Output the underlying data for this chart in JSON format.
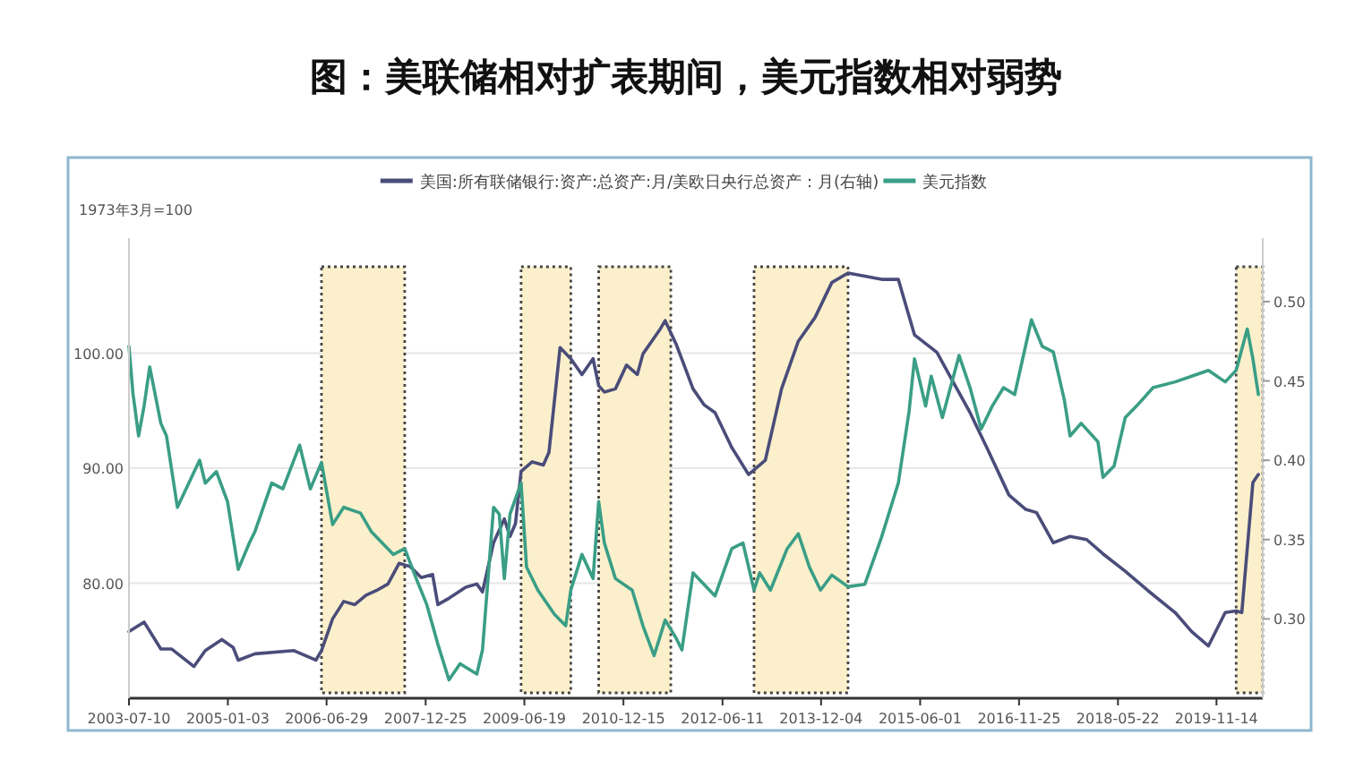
{
  "chart_data": {
    "type": "line",
    "title": "图：美联储相对扩表期间，美元指数相对弱势",
    "ylabel": "1973年3月=100",
    "legend": "top",
    "grid": "y",
    "marker": "none",
    "line_style": "solid",
    "xlim": [
      "2003-07-10",
      "2020-07-25"
    ],
    "xticks": [
      "2003-07-10",
      "2005-01-03",
      "2006-06-29",
      "2007-12-25",
      "2009-06-19",
      "2010-12-15",
      "2012-06-11",
      "2013-12-04",
      "2015-06-01",
      "2016-11-25",
      "2018-05-22",
      "2019-11-14"
    ],
    "ylim": [
      70,
      110
    ],
    "yticks": [
      {
        "value": 80,
        "label": "80.00"
      },
      {
        "value": 90,
        "label": "90.00"
      },
      {
        "value": 100,
        "label": "100.00"
      }
    ],
    "y2lim": [
      0.25,
      0.54
    ],
    "y2ticks": [
      {
        "value": 0.3,
        "label": "0.30"
      },
      {
        "value": 0.35,
        "label": "0.35"
      },
      {
        "value": 0.4,
        "label": "0.40"
      },
      {
        "value": 0.45,
        "label": "0.45"
      },
      {
        "value": 0.5,
        "label": "0.50"
      }
    ],
    "bands": [
      {
        "axis": "x",
        "from": "2006-06",
        "to": "2007-09",
        "color": "#fcf0cc"
      },
      {
        "axis": "x",
        "from": "2009-06",
        "to": "2010-03",
        "color": "#fcf0cc"
      },
      {
        "axis": "x",
        "from": "2010-08",
        "to": "2011-09",
        "color": "#fcf0cc"
      },
      {
        "axis": "x",
        "from": "2012-12",
        "to": "2014-05",
        "color": "#fcf0cc"
      },
      {
        "axis": "x",
        "from": "2020-03",
        "to": "2020-07-25",
        "color": "#fcf0cc"
      }
    ],
    "series": [
      {
        "name": "美国:所有联储银行:资产:总资产:月/美欧日央行总资产：月(右轴)",
        "color": "#4a4d7a",
        "axis": "y2",
        "x": [
          "2003-07-10",
          "2003-10",
          "2004-01",
          "2004-03",
          "2004-07",
          "2004-09",
          "2004-12",
          "2005-02",
          "2005-03",
          "2005-06",
          "2006-01",
          "2006-05",
          "2006-06",
          "2006-08",
          "2006-10",
          "2006-12",
          "2007-02",
          "2007-04",
          "2007-06",
          "2007-08",
          "2007-10",
          "2007-12",
          "2008-02",
          "2008-03",
          "2008-05",
          "2008-08",
          "2008-10",
          "2008-11",
          "2009-01",
          "2009-03",
          "2009-04",
          "2009-05",
          "2009-06",
          "2009-08",
          "2009-10",
          "2009-11",
          "2010-01",
          "2010-03",
          "2010-05",
          "2010-07",
          "2010-08",
          "2010-09",
          "2010-11",
          "2011-01",
          "2011-03",
          "2011-04",
          "2011-07",
          "2011-08",
          "2011-10",
          "2012-01",
          "2012-03",
          "2012-05",
          "2012-08",
          "2012-11",
          "2013-02",
          "2013-05",
          "2013-08",
          "2013-11",
          "2014-02",
          "2014-05",
          "2014-08",
          "2014-11",
          "2015-02",
          "2015-05",
          "2015-09",
          "2015-12",
          "2016-03",
          "2016-06",
          "2016-10",
          "2017-01",
          "2017-03",
          "2017-06",
          "2017-09",
          "2017-12",
          "2018-03",
          "2018-07",
          "2018-11",
          "2019-04",
          "2019-07",
          "2019-10",
          "2020-01",
          "2020-03",
          "2020-04",
          "2020-06",
          "2020-07"
        ],
        "values": [
          0.292,
          0.298,
          0.281,
          0.281,
          0.27,
          0.28,
          0.287,
          0.282,
          0.274,
          0.278,
          0.28,
          0.274,
          0.28,
          0.3,
          0.311,
          0.309,
          0.315,
          0.318,
          0.322,
          0.335,
          0.333,
          0.326,
          0.328,
          0.309,
          0.313,
          0.32,
          0.322,
          0.317,
          0.348,
          0.363,
          0.352,
          0.36,
          0.393,
          0.399,
          0.397,
          0.405,
          0.471,
          0.464,
          0.454,
          0.464,
          0.447,
          0.443,
          0.445,
          0.46,
          0.454,
          0.467,
          0.482,
          0.488,
          0.473,
          0.445,
          0.435,
          0.43,
          0.408,
          0.391,
          0.4,
          0.445,
          0.475,
          0.49,
          0.512,
          0.518,
          0.516,
          0.514,
          0.514,
          0.479,
          0.468,
          0.449,
          0.43,
          0.408,
          0.378,
          0.369,
          0.367,
          0.348,
          0.352,
          0.35,
          0.341,
          0.33,
          0.318,
          0.304,
          0.292,
          0.283,
          0.304,
          0.305,
          0.304,
          0.386,
          0.391
        ]
      },
      {
        "name": "美元指数",
        "color": "#3a9e86",
        "x": [
          "2003-07-10",
          "2003-08",
          "2003-09",
          "2003-10",
          "2003-11",
          "2004-01",
          "2004-02",
          "2004-04",
          "2004-05",
          "2004-08",
          "2004-09",
          "2004-11",
          "2005-01",
          "2005-03",
          "2005-05",
          "2005-06",
          "2005-09",
          "2005-11",
          "2006-02",
          "2006-04",
          "2006-06",
          "2006-08",
          "2006-10",
          "2007-01",
          "2007-03",
          "2007-07",
          "2007-09",
          "2007-11",
          "2008-01",
          "2008-03",
          "2008-05",
          "2008-07",
          "2008-10",
          "2008-11",
          "2009-01",
          "2009-02",
          "2009-03",
          "2009-04",
          "2009-06",
          "2009-07",
          "2009-09",
          "2009-12",
          "2010-02",
          "2010-03",
          "2010-05",
          "2010-07",
          "2010-08",
          "2010-09",
          "2010-11",
          "2011-02",
          "2011-04",
          "2011-06",
          "2011-08",
          "2011-10",
          "2011-11",
          "2012-01",
          "2012-05",
          "2012-08",
          "2012-10",
          "2012-12",
          "2013-01",
          "2013-03",
          "2013-06",
          "2013-08",
          "2013-10",
          "2013-12",
          "2014-02",
          "2014-05",
          "2014-08",
          "2014-11",
          "2015-02",
          "2015-04",
          "2015-05",
          "2015-07",
          "2015-08",
          "2015-10",
          "2016-01",
          "2016-03",
          "2016-05",
          "2016-07",
          "2016-09",
          "2016-11",
          "2017-02",
          "2017-04",
          "2017-06",
          "2017-08",
          "2017-09",
          "2017-11",
          "2018-02",
          "2018-03",
          "2018-05",
          "2018-07",
          "2018-09",
          "2018-12",
          "2019-04",
          "2019-07",
          "2019-10",
          "2020-01",
          "2020-03",
          "2020-05",
          "2020-06",
          "2020-07"
        ],
        "values": [
          100.6,
          96.5,
          92.8,
          95.4,
          98.8,
          93.9,
          92.8,
          86.6,
          87.6,
          90.7,
          88.7,
          89.7,
          87.1,
          81.2,
          83.5,
          84.5,
          88.7,
          88.2,
          92.0,
          88.2,
          90.5,
          85.1,
          86.6,
          86.1,
          84.5,
          82.5,
          83.0,
          80.5,
          78.1,
          74.7,
          71.6,
          73.0,
          72.1,
          74.2,
          86.6,
          86.0,
          80.4,
          86.0,
          88.7,
          81.4,
          79.4,
          77.3,
          76.3,
          79.4,
          82.5,
          80.4,
          87.1,
          83.5,
          80.4,
          79.4,
          76.3,
          73.7,
          76.8,
          75.2,
          74.2,
          80.9,
          78.9,
          83.0,
          83.5,
          79.4,
          80.9,
          79.4,
          83.0,
          84.3,
          81.4,
          79.4,
          80.7,
          79.7,
          79.9,
          84.0,
          88.7,
          94.9,
          99.5,
          95.4,
          98.0,
          94.4,
          99.8,
          97.0,
          93.4,
          95.4,
          97.0,
          96.4,
          102.9,
          100.6,
          100.1,
          95.9,
          92.8,
          93.9,
          92.3,
          89.2,
          90.2,
          94.4,
          95.4,
          97.0,
          97.5,
          98.0,
          98.5,
          97.5,
          98.5,
          102.1,
          99.5,
          96.4
        ]
      }
    ]
  }
}
